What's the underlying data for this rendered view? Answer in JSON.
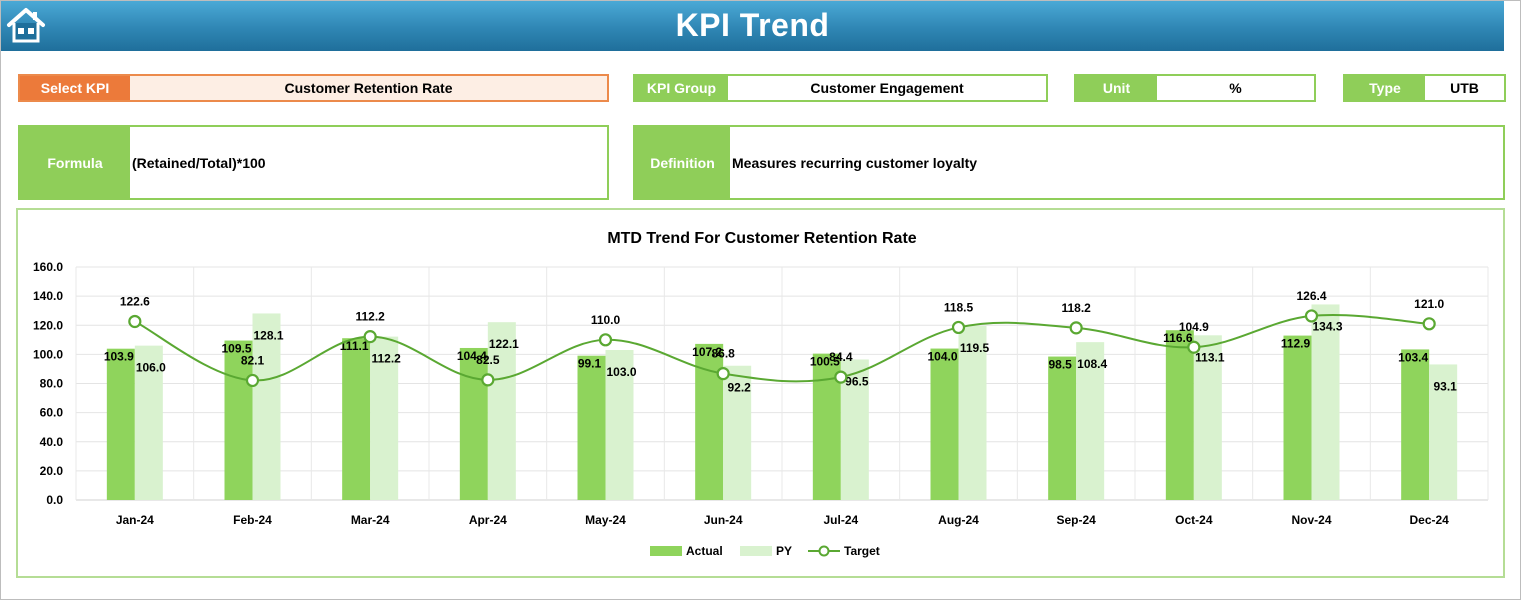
{
  "header": {
    "title": "KPI Trend"
  },
  "fields": {
    "select_kpi": {
      "label": "Select KPI",
      "value": "Customer Retention Rate"
    },
    "kpi_group": {
      "label": "KPI Group",
      "value": "Customer Engagement"
    },
    "unit": {
      "label": "Unit",
      "value": "%"
    },
    "type": {
      "label": "Type",
      "value": "UTB"
    },
    "formula": {
      "label": "Formula",
      "value": "(Retained/Total)*100"
    },
    "definition": {
      "label": "Definition",
      "value": "Measures recurring customer loyalty"
    }
  },
  "colors": {
    "header": "#2f86b4",
    "green": "#8fce59",
    "orange": "#ec7a3a",
    "actual": "#8fd45c",
    "py": "#d9f2cf",
    "target": "#5aa832"
  },
  "chart_data": {
    "type": "bar",
    "title": "MTD Trend For Customer Retention Rate",
    "categories": [
      "Jan-24",
      "Feb-24",
      "Mar-24",
      "Apr-24",
      "May-24",
      "Jun-24",
      "Jul-24",
      "Aug-24",
      "Sep-24",
      "Oct-24",
      "Nov-24",
      "Dec-24"
    ],
    "series": [
      {
        "name": "Actual",
        "type": "bar",
        "values": [
          103.9,
          109.5,
          111.1,
          104.4,
          99.1,
          107.2,
          100.5,
          104.0,
          98.5,
          116.6,
          112.9,
          103.4
        ]
      },
      {
        "name": "PY",
        "type": "bar",
        "values": [
          106.0,
          128.1,
          112.2,
          122.1,
          103.0,
          92.2,
          96.5,
          119.5,
          108.4,
          113.1,
          134.3,
          93.1
        ]
      },
      {
        "name": "Target",
        "type": "line",
        "values": [
          122.6,
          82.1,
          112.2,
          82.5,
          110.0,
          86.8,
          84.4,
          118.5,
          118.2,
          104.9,
          126.4,
          121.0
        ]
      }
    ],
    "ylim": [
      0,
      160
    ],
    "yticks": [
      "0.0",
      "20.0",
      "40.0",
      "60.0",
      "80.0",
      "100.0",
      "120.0",
      "140.0",
      "160.0"
    ],
    "grid": true,
    "legend": "bottom"
  }
}
